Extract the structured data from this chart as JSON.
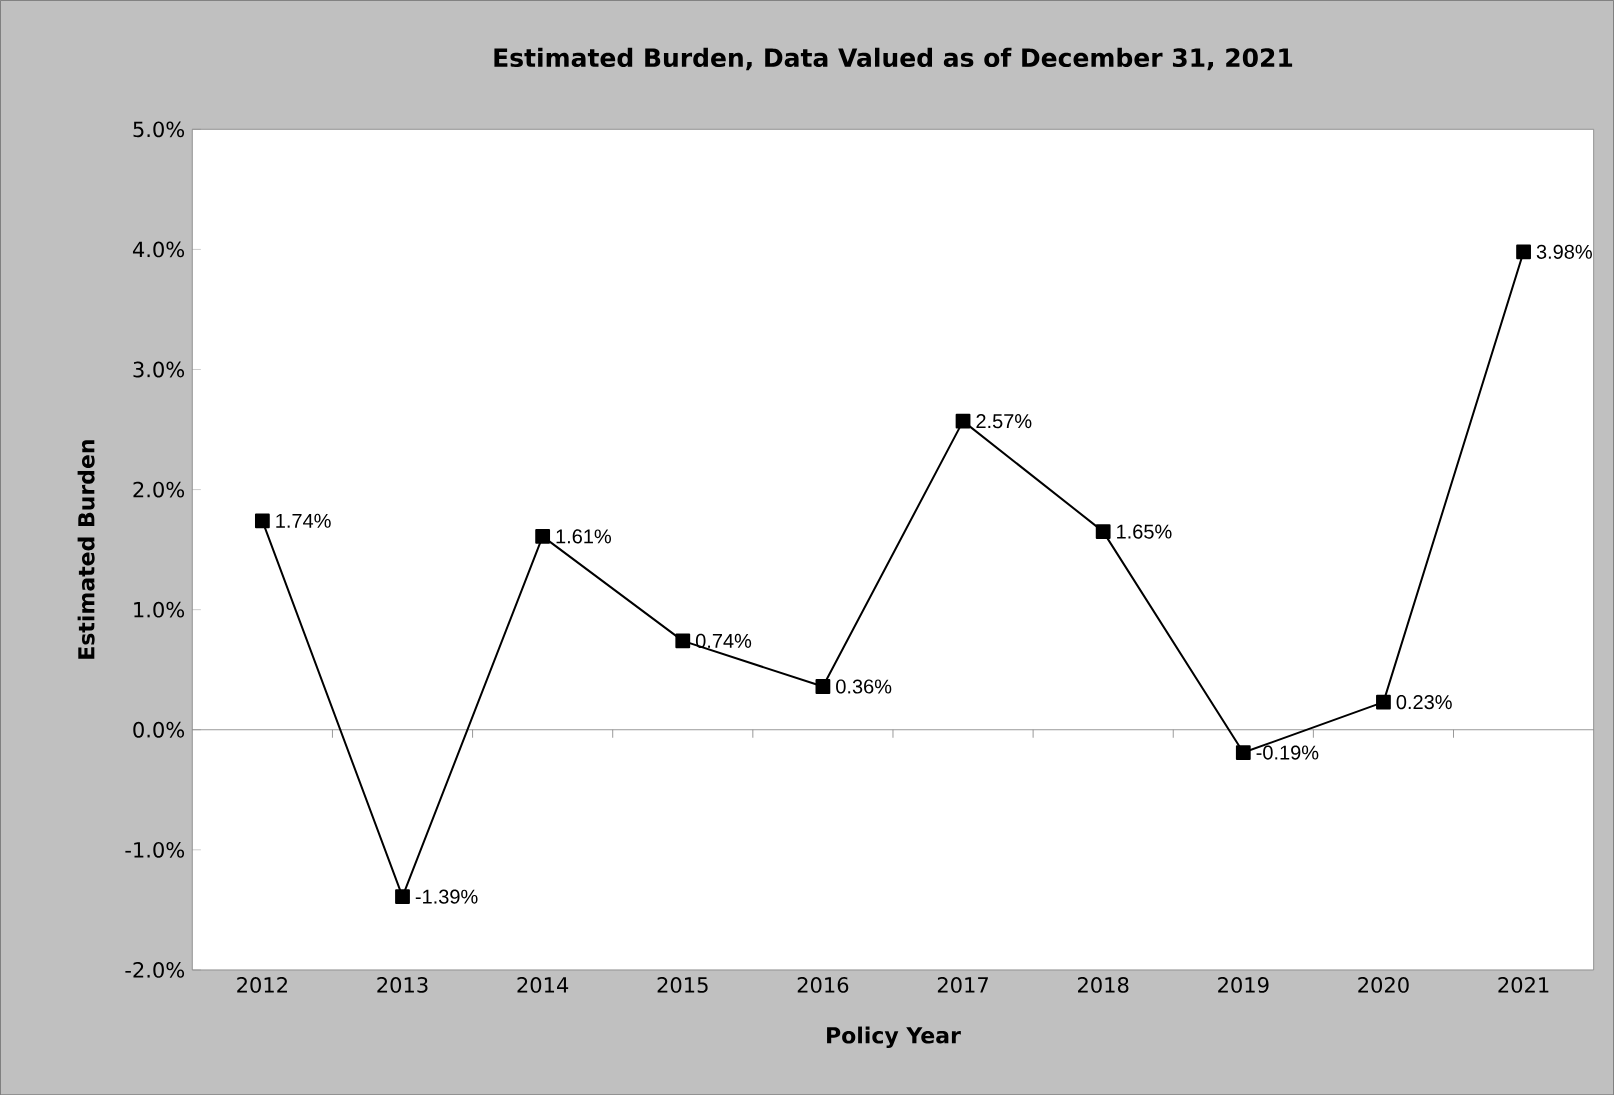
{
  "chart_data": {
    "type": "line",
    "title": "Estimated Burden, Data Valued as of December 31, 2021",
    "xlabel": "Policy Year",
    "ylabel": "Estimated Burden",
    "categories": [
      "2012",
      "2013",
      "2014",
      "2015",
      "2016",
      "2017",
      "2018",
      "2019",
      "2020",
      "2021"
    ],
    "values": [
      1.74,
      -1.39,
      1.61,
      0.74,
      0.36,
      2.57,
      1.65,
      -0.19,
      0.23,
      3.98
    ],
    "value_labels": [
      "1.74%",
      "-1.39%",
      "1.61%",
      "0.74%",
      "0.36%",
      "2.57%",
      "1.65%",
      "-0.19%",
      "0.23%",
      "3.98%"
    ],
    "color": "#000000",
    "marker": "square",
    "line_style": "solid",
    "ylim": [
      -2,
      5
    ],
    "yticks": [
      {
        "value": -2,
        "label": "-2.0%"
      },
      {
        "value": -1,
        "label": "-1.0%"
      },
      {
        "value": 0,
        "label": "0.0%"
      },
      {
        "value": 1,
        "label": "1.0%"
      },
      {
        "value": 2,
        "label": "2.0%"
      },
      {
        "value": 3,
        "label": "3.0%"
      },
      {
        "value": 4,
        "label": "4.0%"
      },
      {
        "value": 5,
        "label": "5.0%"
      }
    ],
    "ref_lines": [
      {
        "axis": "y",
        "value": 0,
        "color": "#808080"
      }
    ],
    "grid": false
  }
}
